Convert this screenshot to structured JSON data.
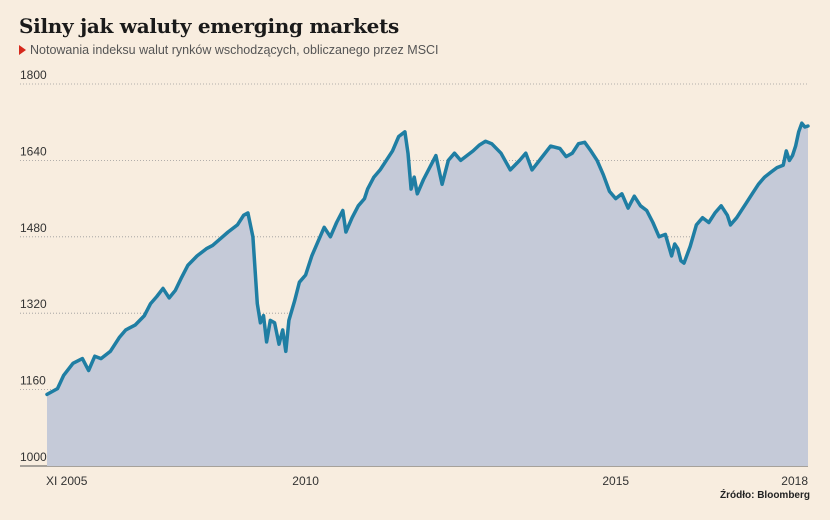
{
  "header": {
    "title": "Silny jak waluty emerging markets",
    "subtitle": "Notowania indeksu walut rynków wschodzących, obliczanego przez MSCI"
  },
  "source": "Źródło: Bloomberg",
  "colors": {
    "line": "#1f7ea3",
    "fill": "#c5cad8",
    "grid": "#9a9a9a",
    "marker": "#d6281b",
    "background": "#f8eddf"
  },
  "chart_data": {
    "type": "area",
    "title": "Silny jak waluty emerging markets",
    "subtitle": "Notowania indeksu walut rynków wschodzących, obliczanego przez MSCI",
    "ylim": [
      1000,
      1800
    ],
    "xlim": [
      2005.83,
      2018.1
    ],
    "y_ticks": [
      1000,
      1160,
      1320,
      1480,
      1640,
      1800
    ],
    "x_ticks": [
      {
        "x": 2005.83,
        "label": "XI 2005"
      },
      {
        "x": 2010.0,
        "label": "2010"
      },
      {
        "x": 2015.0,
        "label": "2015"
      },
      {
        "x": 2018.1,
        "label": "2018"
      }
    ],
    "grid": "horizontal dotted",
    "legend": "none",
    "series": [
      {
        "values": [
          [
            2005.83,
            1150
          ],
          [
            2006.0,
            1162
          ],
          [
            2006.1,
            1190
          ],
          [
            2006.25,
            1215
          ],
          [
            2006.4,
            1225
          ],
          [
            2006.5,
            1200
          ],
          [
            2006.6,
            1230
          ],
          [
            2006.7,
            1225
          ],
          [
            2006.85,
            1240
          ],
          [
            2007.0,
            1270
          ],
          [
            2007.1,
            1285
          ],
          [
            2007.25,
            1295
          ],
          [
            2007.4,
            1315
          ],
          [
            2007.5,
            1340
          ],
          [
            2007.6,
            1355
          ],
          [
            2007.7,
            1372
          ],
          [
            2007.8,
            1352
          ],
          [
            2007.9,
            1368
          ],
          [
            2008.0,
            1395
          ],
          [
            2008.1,
            1420
          ],
          [
            2008.25,
            1440
          ],
          [
            2008.4,
            1455
          ],
          [
            2008.5,
            1462
          ],
          [
            2008.6,
            1473
          ],
          [
            2008.75,
            1490
          ],
          [
            2008.9,
            1505
          ],
          [
            2009.0,
            1525
          ],
          [
            2009.07,
            1530
          ],
          [
            2009.15,
            1480
          ],
          [
            2009.22,
            1340
          ],
          [
            2009.27,
            1300
          ],
          [
            2009.32,
            1315
          ],
          [
            2009.37,
            1260
          ],
          [
            2009.43,
            1305
          ],
          [
            2009.5,
            1300
          ],
          [
            2009.57,
            1255
          ],
          [
            2009.63,
            1285
          ],
          [
            2009.68,
            1240
          ],
          [
            2009.73,
            1305
          ],
          [
            2009.82,
            1345
          ],
          [
            2009.9,
            1385
          ],
          [
            2010.0,
            1400
          ],
          [
            2010.1,
            1440
          ],
          [
            2010.2,
            1470
          ],
          [
            2010.3,
            1500
          ],
          [
            2010.4,
            1480
          ],
          [
            2010.5,
            1510
          ],
          [
            2010.6,
            1535
          ],
          [
            2010.65,
            1490
          ],
          [
            2010.75,
            1520
          ],
          [
            2010.85,
            1545
          ],
          [
            2010.95,
            1560
          ],
          [
            2011.0,
            1580
          ],
          [
            2011.1,
            1605
          ],
          [
            2011.2,
            1620
          ],
          [
            2011.3,
            1640
          ],
          [
            2011.4,
            1660
          ],
          [
            2011.5,
            1690
          ],
          [
            2011.6,
            1700
          ],
          [
            2011.65,
            1655
          ],
          [
            2011.7,
            1580
          ],
          [
            2011.75,
            1605
          ],
          [
            2011.8,
            1570
          ],
          [
            2011.9,
            1600
          ],
          [
            2012.0,
            1625
          ],
          [
            2012.1,
            1650
          ],
          [
            2012.2,
            1590
          ],
          [
            2012.3,
            1640
          ],
          [
            2012.4,
            1655
          ],
          [
            2012.5,
            1640
          ],
          [
            2012.6,
            1650
          ],
          [
            2012.7,
            1660
          ],
          [
            2012.8,
            1672
          ],
          [
            2012.9,
            1680
          ],
          [
            2013.0,
            1675
          ],
          [
            2013.15,
            1655
          ],
          [
            2013.3,
            1620
          ],
          [
            2013.45,
            1640
          ],
          [
            2013.55,
            1655
          ],
          [
            2013.65,
            1620
          ],
          [
            2013.8,
            1645
          ],
          [
            2013.95,
            1670
          ],
          [
            2014.1,
            1665
          ],
          [
            2014.2,
            1648
          ],
          [
            2014.3,
            1655
          ],
          [
            2014.4,
            1675
          ],
          [
            2014.5,
            1678
          ],
          [
            2014.6,
            1660
          ],
          [
            2014.7,
            1640
          ],
          [
            2014.8,
            1610
          ],
          [
            2014.9,
            1575
          ],
          [
            2015.0,
            1560
          ],
          [
            2015.1,
            1570
          ],
          [
            2015.2,
            1540
          ],
          [
            2015.3,
            1565
          ],
          [
            2015.4,
            1545
          ],
          [
            2015.5,
            1535
          ],
          [
            2015.6,
            1510
          ],
          [
            2015.7,
            1480
          ],
          [
            2015.8,
            1485
          ],
          [
            2015.9,
            1440
          ],
          [
            2015.95,
            1465
          ],
          [
            2016.0,
            1455
          ],
          [
            2016.05,
            1430
          ],
          [
            2016.1,
            1425
          ],
          [
            2016.2,
            1460
          ],
          [
            2016.3,
            1505
          ],
          [
            2016.4,
            1520
          ],
          [
            2016.5,
            1510
          ],
          [
            2016.6,
            1530
          ],
          [
            2016.7,
            1545
          ],
          [
            2016.8,
            1525
          ],
          [
            2016.85,
            1505
          ],
          [
            2016.95,
            1520
          ],
          [
            2017.0,
            1530
          ],
          [
            2017.1,
            1550
          ],
          [
            2017.2,
            1570
          ],
          [
            2017.3,
            1590
          ],
          [
            2017.4,
            1605
          ],
          [
            2017.5,
            1615
          ],
          [
            2017.6,
            1625
          ],
          [
            2017.7,
            1630
          ],
          [
            2017.75,
            1660
          ],
          [
            2017.8,
            1640
          ],
          [
            2017.85,
            1650
          ],
          [
            2017.9,
            1670
          ],
          [
            2017.95,
            1700
          ],
          [
            2018.0,
            1718
          ],
          [
            2018.05,
            1710
          ],
          [
            2018.1,
            1712
          ]
        ]
      }
    ]
  }
}
